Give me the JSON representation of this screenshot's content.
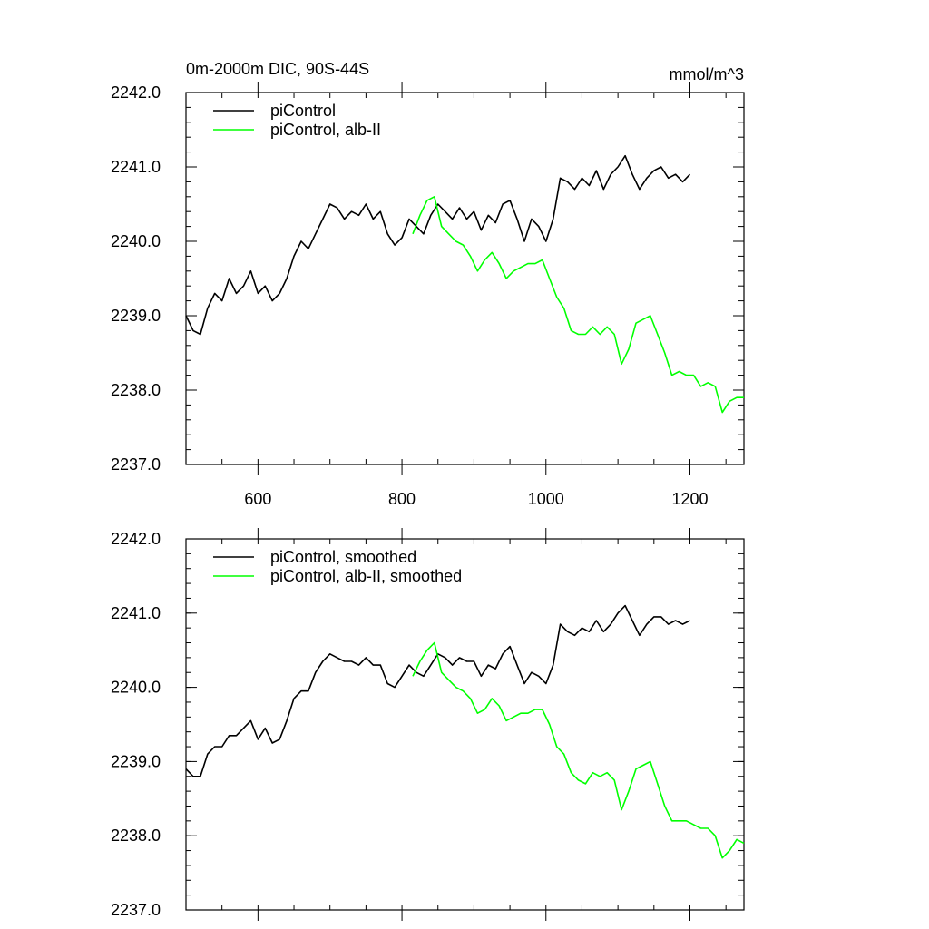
{
  "chart_data": [
    {
      "type": "line",
      "title_left": "0m-2000m DIC, 90S-44S",
      "title_right": "mmol/m^3",
      "xlim": [
        500,
        1275
      ],
      "ylim": [
        2237.0,
        2242.0
      ],
      "x_ticks": [
        600,
        800,
        1000,
        1200
      ],
      "x_tick_labels": [
        "600",
        "800",
        "1000",
        "1200"
      ],
      "y_ticks": [
        2237.0,
        2238.0,
        2239.0,
        2240.0,
        2241.0,
        2242.0
      ],
      "y_tick_labels": [
        "2237.0",
        "2238.0",
        "2239.0",
        "2240.0",
        "2241.0",
        "2242.0"
      ],
      "legend_position": "top-left",
      "series": [
        {
          "name": "piControl",
          "color": "#000000",
          "x": [
            500,
            510,
            520,
            530,
            540,
            550,
            560,
            570,
            580,
            590,
            600,
            610,
            620,
            630,
            640,
            650,
            660,
            670,
            680,
            690,
            700,
            710,
            720,
            730,
            740,
            750,
            760,
            770,
            780,
            790,
            800,
            810,
            820,
            830,
            840,
            850,
            860,
            870,
            880,
            890,
            900,
            910,
            920,
            930,
            940,
            950,
            960,
            970,
            980,
            990,
            1000,
            1010,
            1020,
            1030,
            1040,
            1050,
            1060,
            1070,
            1080,
            1090,
            1100,
            1110,
            1120,
            1130,
            1140,
            1150,
            1160,
            1170,
            1180,
            1190,
            1200
          ],
          "values": [
            2239.0,
            2238.8,
            2238.75,
            2239.1,
            2239.3,
            2239.2,
            2239.5,
            2239.3,
            2239.4,
            2239.6,
            2239.3,
            2239.4,
            2239.2,
            2239.3,
            2239.5,
            2239.8,
            2240.0,
            2239.9,
            2240.1,
            2240.3,
            2240.5,
            2240.45,
            2240.3,
            2240.4,
            2240.35,
            2240.5,
            2240.3,
            2240.4,
            2240.1,
            2239.95,
            2240.05,
            2240.3,
            2240.2,
            2240.1,
            2240.35,
            2240.5,
            2240.4,
            2240.3,
            2240.45,
            2240.3,
            2240.4,
            2240.15,
            2240.35,
            2240.25,
            2240.5,
            2240.55,
            2240.3,
            2240.0,
            2240.3,
            2240.2,
            2240.0,
            2240.3,
            2240.85,
            2240.8,
            2240.7,
            2240.85,
            2240.75,
            2240.95,
            2240.7,
            2240.9,
            2241.0,
            2241.15,
            2240.9,
            2240.7,
            2240.85,
            2240.95,
            2241.0,
            2240.85,
            2240.9,
            2240.8,
            2240.9
          ]
        },
        {
          "name": "piControl, alb-II",
          "color": "#00ff00",
          "x": [
            815,
            825,
            835,
            845,
            855,
            865,
            875,
            885,
            895,
            905,
            915,
            925,
            935,
            945,
            955,
            965,
            975,
            985,
            995,
            1005,
            1015,
            1025,
            1035,
            1045,
            1055,
            1065,
            1075,
            1085,
            1095,
            1105,
            1115,
            1125,
            1135,
            1145,
            1155,
            1165,
            1175,
            1185,
            1195,
            1205,
            1215,
            1225,
            1235,
            1245,
            1255,
            1265,
            1275
          ],
          "values": [
            2240.1,
            2240.35,
            2240.55,
            2240.6,
            2240.2,
            2240.1,
            2240.0,
            2239.95,
            2239.8,
            2239.6,
            2239.75,
            2239.85,
            2239.7,
            2239.5,
            2239.6,
            2239.65,
            2239.7,
            2239.7,
            2239.75,
            2239.5,
            2239.25,
            2239.1,
            2238.8,
            2238.75,
            2238.75,
            2238.85,
            2238.75,
            2238.85,
            2238.75,
            2238.35,
            2238.55,
            2238.9,
            2238.95,
            2239.0,
            2238.75,
            2238.5,
            2238.2,
            2238.25,
            2238.2,
            2238.2,
            2238.05,
            2238.1,
            2238.05,
            2237.7,
            2237.85,
            2237.9,
            2237.9
          ]
        }
      ]
    },
    {
      "type": "line",
      "xlim": [
        500,
        1275
      ],
      "ylim": [
        2237.0,
        2242.0
      ],
      "x_ticks": [
        600,
        800,
        1000,
        1200
      ],
      "y_ticks": [
        2237.0,
        2238.0,
        2239.0,
        2240.0,
        2241.0,
        2242.0
      ],
      "y_tick_labels": [
        "2237.0",
        "2238.0",
        "2239.0",
        "2240.0",
        "2241.0",
        "2242.0"
      ],
      "legend_position": "top-left",
      "series": [
        {
          "name": "piControl, smoothed",
          "color": "#000000",
          "x": [
            500,
            510,
            520,
            530,
            540,
            550,
            560,
            570,
            580,
            590,
            600,
            610,
            620,
            630,
            640,
            650,
            660,
            670,
            680,
            690,
            700,
            710,
            720,
            730,
            740,
            750,
            760,
            770,
            780,
            790,
            800,
            810,
            820,
            830,
            840,
            850,
            860,
            870,
            880,
            890,
            900,
            910,
            920,
            930,
            940,
            950,
            960,
            970,
            980,
            990,
            1000,
            1010,
            1020,
            1030,
            1040,
            1050,
            1060,
            1070,
            1080,
            1090,
            1100,
            1110,
            1120,
            1130,
            1140,
            1150,
            1160,
            1170,
            1180,
            1190,
            1200
          ],
          "values": [
            2238.9,
            2238.8,
            2238.8,
            2239.1,
            2239.2,
            2239.2,
            2239.35,
            2239.35,
            2239.45,
            2239.55,
            2239.3,
            2239.45,
            2239.25,
            2239.3,
            2239.55,
            2239.85,
            2239.95,
            2239.95,
            2240.2,
            2240.35,
            2240.45,
            2240.4,
            2240.35,
            2240.35,
            2240.3,
            2240.4,
            2240.3,
            2240.3,
            2240.05,
            2240.0,
            2240.15,
            2240.3,
            2240.2,
            2240.15,
            2240.3,
            2240.45,
            2240.4,
            2240.3,
            2240.4,
            2240.35,
            2240.35,
            2240.15,
            2240.3,
            2240.25,
            2240.45,
            2240.55,
            2240.3,
            2240.05,
            2240.2,
            2240.15,
            2240.05,
            2240.3,
            2240.85,
            2240.75,
            2240.7,
            2240.8,
            2240.75,
            2240.9,
            2240.75,
            2240.85,
            2241.0,
            2241.1,
            2240.9,
            2240.7,
            2240.85,
            2240.95,
            2240.95,
            2240.85,
            2240.9,
            2240.85,
            2240.9
          ]
        },
        {
          "name": "piControl, alb-II, smoothed",
          "color": "#00ff00",
          "x": [
            815,
            825,
            835,
            845,
            855,
            865,
            875,
            885,
            895,
            905,
            915,
            925,
            935,
            945,
            955,
            965,
            975,
            985,
            995,
            1005,
            1015,
            1025,
            1035,
            1045,
            1055,
            1065,
            1075,
            1085,
            1095,
            1105,
            1115,
            1125,
            1135,
            1145,
            1155,
            1165,
            1175,
            1185,
            1195,
            1205,
            1215,
            1225,
            1235,
            1245,
            1255,
            1265,
            1275
          ],
          "values": [
            2240.15,
            2240.35,
            2240.5,
            2240.6,
            2240.2,
            2240.1,
            2240.0,
            2239.95,
            2239.85,
            2239.65,
            2239.7,
            2239.85,
            2239.75,
            2239.55,
            2239.6,
            2239.65,
            2239.65,
            2239.7,
            2239.7,
            2239.5,
            2239.2,
            2239.1,
            2238.85,
            2238.75,
            2238.7,
            2238.85,
            2238.8,
            2238.85,
            2238.75,
            2238.35,
            2238.6,
            2238.9,
            2238.95,
            2239.0,
            2238.7,
            2238.4,
            2238.2,
            2238.2,
            2238.2,
            2238.15,
            2238.1,
            2238.1,
            2238.0,
            2237.7,
            2237.8,
            2237.95,
            2237.9
          ]
        }
      ]
    }
  ]
}
